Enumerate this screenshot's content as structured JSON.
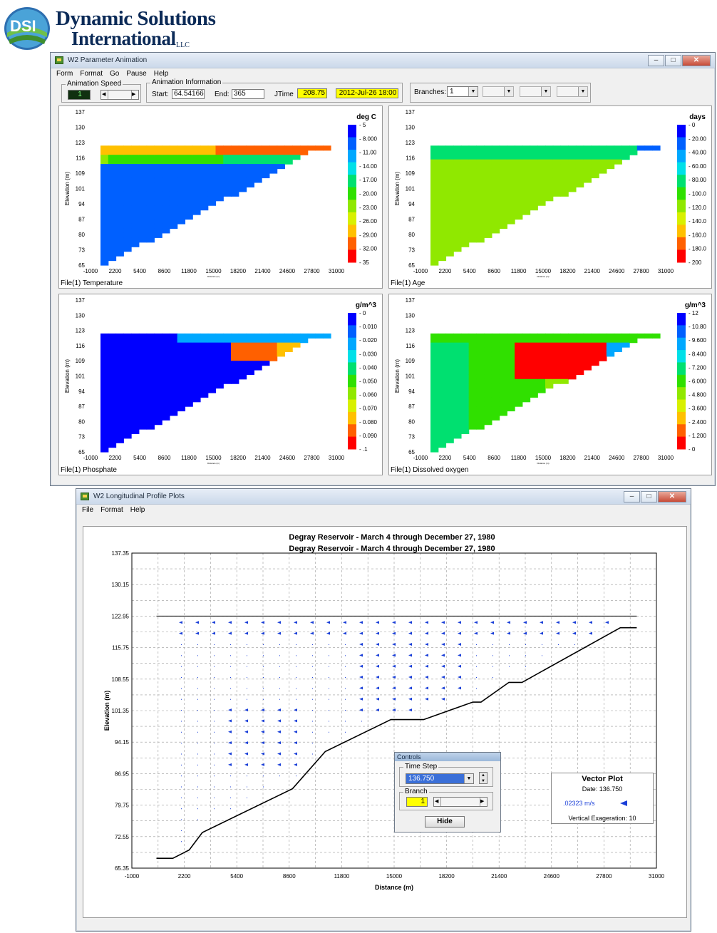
{
  "logo": {
    "abbr": "DSI",
    "line1": "Dynamic Solutions",
    "line2": "International",
    "suffix": "LLC"
  },
  "anim_window": {
    "title": "W2 Parameter Animation",
    "menu": [
      "Form",
      "Format",
      "Go",
      "Pause",
      "Help"
    ],
    "speed": {
      "label": "Animation Speed",
      "value": "1"
    },
    "info": {
      "label": "Animation Information",
      "start_label": "Start:",
      "start": "64.54166",
      "end_label": "End:",
      "end": "365",
      "jtime_label": "JTime",
      "jtime": "208.75",
      "date": "2012-Jul-26 18:00"
    },
    "branches": {
      "label": "Branches:",
      "value": "1"
    }
  },
  "panels": [
    {
      "caption": "File(1) Temperature",
      "unit": "deg C",
      "legend": [
        "5",
        "8.000",
        "11.00",
        "14.00",
        "17.00",
        "20.00",
        "23.00",
        "26.00",
        "29.00",
        "32.00",
        "35"
      ]
    },
    {
      "caption": "File(1) Age",
      "unit": "days",
      "legend": [
        "0",
        "20.00",
        "40.00",
        "60.00",
        "80.00",
        "100.0",
        "120.0",
        "140.0",
        "160.0",
        "180.0",
        "200"
      ]
    },
    {
      "caption": "File(1) Phosphate",
      "unit": "g/m^3",
      "legend": [
        "0",
        "0.010",
        "0.020",
        "0.030",
        "0.040",
        "0.050",
        "0.060",
        "0.070",
        "0.080",
        "0.090",
        ".1"
      ]
    },
    {
      "caption": "File(1) Dissolved oxygen",
      "unit": "g/m^3",
      "legend": [
        "12",
        "10.80",
        "9.600",
        "8.400",
        "7.200",
        "6.000",
        "4.800",
        "3.600",
        "2.400",
        "1.200",
        "0"
      ]
    }
  ],
  "panel_axes": {
    "ylabel": "Elevation (m)",
    "xlabel": "Distance (m)",
    "yticks": [
      "137",
      "130",
      "123",
      "116",
      "109",
      "101",
      "94",
      "87",
      "80",
      "73",
      "65"
    ],
    "xticks": [
      "-1000",
      "2200",
      "5400",
      "8600",
      "11800",
      "15000",
      "18200",
      "21400",
      "24600",
      "27800",
      "31000"
    ]
  },
  "profile_window": {
    "title": "W2 Longitudinal Profile Plots",
    "menu": [
      "File",
      "Format",
      "Help"
    ]
  },
  "chart_data": {
    "type": "line",
    "title": "Degray Reservoir - March 4 through December 27, 1980",
    "subtitle": "Degray Reservoir - March 4 through December 27, 1980",
    "xlabel": "Distance (m)",
    "ylabel": "Elevation (m)",
    "xlim": [
      -1000,
      31000
    ],
    "ylim": [
      65.35,
      137.35
    ],
    "xticks": [
      "-1000",
      "2200",
      "5400",
      "8600",
      "11800",
      "15000",
      "18200",
      "21400",
      "24600",
      "27800",
      "31000"
    ],
    "yticks": [
      "137.35",
      "130.15",
      "122.95",
      "115.75",
      "108.55",
      "101.35",
      "94.15",
      "86.95",
      "79.75",
      "72.55",
      "65.35"
    ],
    "grid": true,
    "series": [
      {
        "x": [
          500,
          1500,
          2500,
          3300,
          8800,
          10800,
          14800,
          16800,
          19800,
          20300,
          22000,
          22800,
          28800,
          29800
        ],
        "y": [
          67.6,
          67.6,
          69.5,
          73.5,
          83.5,
          92.0,
          99.3,
          99.3,
          103.3,
          103.3,
          107.8,
          107.8,
          120.3,
          120.3
        ]
      },
      {
        "x": [
          500,
          29800
        ],
        "y": [
          122.95,
          122.95
        ]
      }
    ],
    "vector_magnitude": ".02323 m/s"
  },
  "controls": {
    "title": "Controls",
    "time_step_label": "Time Step",
    "time_step": "136.750",
    "branch_label": "Branch",
    "branch": "1",
    "hide": "Hide"
  },
  "vector_plot": {
    "title": "Vector Plot",
    "date": "Date: 136.750",
    "magnitude": ".02323 m/s",
    "exaggeration": "Vertical Exageration: 10"
  }
}
